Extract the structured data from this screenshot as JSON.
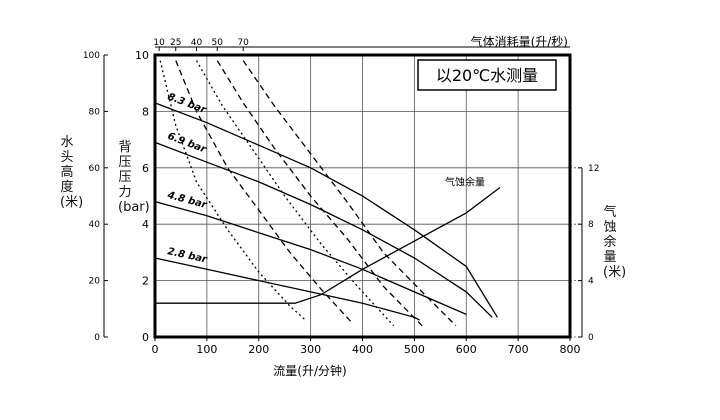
{
  "chart_data": {
    "type": "line",
    "title_box": "以20℃水测量",
    "xlabel": "流量(升/分钟)",
    "xlim": [
      0,
      800
    ],
    "x_ticks": [
      "0",
      "100",
      "200",
      "300",
      "400",
      "500",
      "600",
      "700",
      "800"
    ],
    "ylabel": "背压压力(bar)",
    "ylim": [
      0,
      10
    ],
    "y_ticks": [
      "0",
      "2",
      "4",
      "6",
      "8",
      "10"
    ],
    "y_left_label": "水头高度(米)",
    "y_left_ticks": [
      "0",
      "20",
      "40",
      "60",
      "80",
      "100"
    ],
    "y_right_label": "气蚀余量(米)",
    "y_right_ticks": [
      "0",
      "4",
      "8",
      "12"
    ],
    "air_axis_label": "气体消耗量(升/秒)",
    "air_ticks": [
      {
        "label": "10",
        "x": 8
      },
      {
        "label": "25",
        "x": 40
      },
      {
        "label": "40",
        "x": 80
      },
      {
        "label": "50",
        "x": 120
      },
      {
        "label": "70",
        "x": 170
      }
    ],
    "grid": true,
    "series": [
      {
        "name": "8.3 bar",
        "style": "solid",
        "points": [
          [
            0,
            8.3
          ],
          [
            100,
            7.6
          ],
          [
            200,
            6.8
          ],
          [
            300,
            6.0
          ],
          [
            400,
            5.0
          ],
          [
            500,
            3.8
          ],
          [
            600,
            2.5
          ],
          [
            660,
            0.7
          ]
        ]
      },
      {
        "name": "6.9 bar",
        "style": "solid",
        "points": [
          [
            0,
            6.9
          ],
          [
            100,
            6.2
          ],
          [
            200,
            5.5
          ],
          [
            300,
            4.7
          ],
          [
            400,
            3.8
          ],
          [
            500,
            2.8
          ],
          [
            600,
            1.6
          ],
          [
            650,
            0.7
          ]
        ]
      },
      {
        "name": "4.8 bar",
        "style": "solid",
        "points": [
          [
            0,
            4.8
          ],
          [
            100,
            4.3
          ],
          [
            200,
            3.7
          ],
          [
            300,
            3.1
          ],
          [
            400,
            2.4
          ],
          [
            500,
            1.6
          ],
          [
            600,
            0.8
          ]
        ]
      },
      {
        "name": "2.8 bar",
        "style": "solid",
        "points": [
          [
            0,
            2.8
          ],
          [
            100,
            2.4
          ],
          [
            200,
            2.0
          ],
          [
            300,
            1.6
          ],
          [
            400,
            1.2
          ],
          [
            500,
            0.7
          ],
          [
            510,
            0.6
          ]
        ]
      },
      {
        "name": "气蚀余量",
        "style": "solid",
        "points": [
          [
            0,
            1.2
          ],
          [
            270,
            1.2
          ],
          [
            320,
            1.5
          ],
          [
            400,
            2.4
          ],
          [
            500,
            3.4
          ],
          [
            600,
            4.4
          ],
          [
            665,
            5.3
          ]
        ]
      },
      {
        "name": "10",
        "style": "dotted",
        "points": [
          [
            10,
            9.8
          ],
          [
            40,
            7.5
          ],
          [
            80,
            5.5
          ],
          [
            140,
            3.8
          ],
          [
            200,
            2.3
          ],
          [
            260,
            1.1
          ],
          [
            290,
            0.6
          ]
        ]
      },
      {
        "name": "25",
        "style": "dashed",
        "points": [
          [
            40,
            9.8
          ],
          [
            80,
            8.0
          ],
          [
            140,
            6.0
          ],
          [
            200,
            4.5
          ],
          [
            260,
            3.0
          ],
          [
            320,
            1.7
          ],
          [
            380,
            0.5
          ]
        ]
      },
      {
        "name": "40",
        "style": "dotted",
        "points": [
          [
            80,
            9.8
          ],
          [
            130,
            8.2
          ],
          [
            190,
            6.6
          ],
          [
            250,
            5.0
          ],
          [
            320,
            3.3
          ],
          [
            390,
            1.8
          ],
          [
            460,
            0.4
          ]
        ]
      },
      {
        "name": "50",
        "style": "dashed",
        "points": [
          [
            120,
            9.8
          ],
          [
            170,
            8.3
          ],
          [
            230,
            6.7
          ],
          [
            300,
            5.0
          ],
          [
            370,
            3.5
          ],
          [
            440,
            1.8
          ],
          [
            520,
            0.3
          ]
        ]
      },
      {
        "name": "70",
        "style": "dashed",
        "points": [
          [
            170,
            9.8
          ],
          [
            230,
            8.2
          ],
          [
            300,
            6.5
          ],
          [
            370,
            4.8
          ],
          [
            440,
            3.0
          ],
          [
            520,
            1.5
          ],
          [
            580,
            0.4
          ]
        ]
      }
    ],
    "curve_labels": [
      {
        "text": "8.3 bar",
        "series": "8.3 bar"
      },
      {
        "text": "6.9 bar",
        "series": "6.9 bar"
      },
      {
        "text": "4.8 bar",
        "series": "4.8 bar"
      },
      {
        "text": "2.8 bar",
        "series": "2.8 bar"
      },
      {
        "text": "气蚀余量",
        "series": "气蚀余量"
      }
    ]
  }
}
